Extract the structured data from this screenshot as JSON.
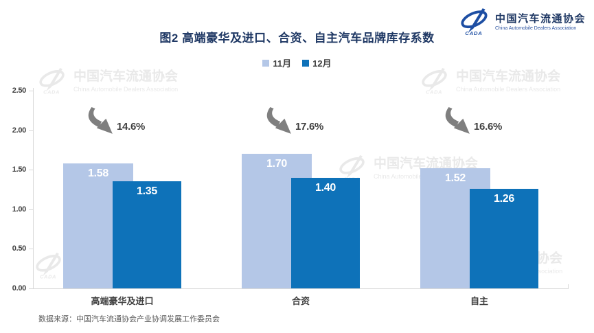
{
  "header": {
    "title": "图2  高端豪华及进口、合资、自主汽车品牌库存系数",
    "logo": {
      "name_cn": "中国汽车流通协会",
      "name_en": "China Automobile Dealers Association"
    }
  },
  "chart_data": {
    "type": "bar",
    "title": "图2  高端豪华及进口、合资、自主汽车品牌库存系数",
    "categories": [
      "高端豪华及进口",
      "合资",
      "自主"
    ],
    "series": [
      {
        "name": "11月",
        "color": "#b4c7e7",
        "values": [
          1.58,
          1.7,
          1.52
        ]
      },
      {
        "name": "12月",
        "color": "#0e72b9",
        "values": [
          1.35,
          1.4,
          1.26
        ]
      }
    ],
    "change_labels": [
      "14.6%",
      "17.6%",
      "16.6%"
    ],
    "ylim": [
      0,
      2.5
    ],
    "yticks": [
      "0.00",
      "0.50",
      "1.00",
      "1.50",
      "2.00",
      "2.50"
    ],
    "grid": false,
    "legend_position": "top-center",
    "value_label_format": "2-decimals",
    "annotation_style": "gray-down-right-arrow"
  },
  "watermark": {
    "text_cn": "中国汽车流通协会",
    "text_en": "China Automobile Dealers Association"
  },
  "footer": {
    "source": "数据来源：中国汽车流通协会产业协调发展工作委员会"
  },
  "colors": {
    "series_november": "#b4c7e7",
    "series_december": "#0e72b9",
    "title_text": "#1f3864",
    "axis_text": "#404040",
    "axis_line": "#d9d9d9",
    "arrow": "#7f7f7f",
    "source_text": "#595959",
    "watermark": "#e9e9e9",
    "logo_blue": "#1d4ea3"
  }
}
